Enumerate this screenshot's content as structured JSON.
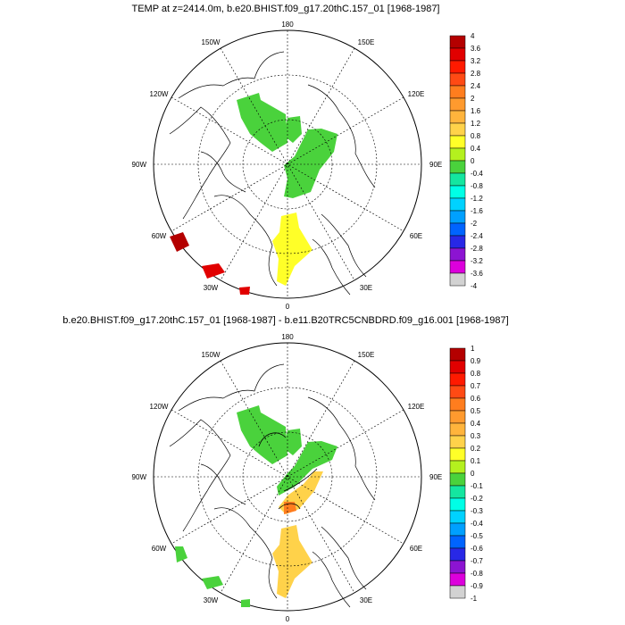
{
  "panels": [
    {
      "id": "top",
      "title": "TEMP at z=2414.0m, b.e20.BHIST.f09_g17.20thC.157_01 [1968-1987]",
      "colorbar_labels": [
        "4",
        "3.6",
        "3.2",
        "2.8",
        "2.4",
        "2",
        "1.6",
        "1.2",
        "0.8",
        "0.4",
        "0",
        "-0.4",
        "-0.8",
        "-1.2",
        "-1.6",
        "-2",
        "-2.4",
        "-2.8",
        "-3.2",
        "-3.6",
        "-4"
      ]
    },
    {
      "id": "bottom",
      "title": "b.e20.BHIST.f09_g17.20thC.157_01 [1968-1987] - b.e11.B20TRC5CNBDRD.f09_g16.001 [1968-1987]",
      "colorbar_labels": [
        "1",
        "0.9",
        "0.8",
        "0.7",
        "0.6",
        "0.5",
        "0.4",
        "0.3",
        "0.2",
        "0.1",
        "0",
        "-0.1",
        "-0.2",
        "-0.3",
        "-0.4",
        "-0.5",
        "-0.6",
        "-0.7",
        "-0.8",
        "-0.9",
        "-1"
      ]
    }
  ],
  "longitude_labels": {
    "top": "180",
    "bottom": "0",
    "left": "90W",
    "right": "90E",
    "upper_left_1": "150W",
    "upper_left_2": "120W",
    "lower_left_1": "60W",
    "lower_left_2": "30W",
    "upper_right_1": "150E",
    "upper_right_2": "120E",
    "lower_right_1": "60E",
    "lower_right_2": "30E"
  },
  "colorbar_colors": [
    "#b40000",
    "#e10000",
    "#ff1a00",
    "#ff4a14",
    "#ff7d1e",
    "#ff9a2e",
    "#ffb43c",
    "#ffd24a",
    "#ffff28",
    "#b4f01e",
    "#4ad23c",
    "#14e6a0",
    "#00ffe6",
    "#00d2ff",
    "#00a0ff",
    "#0064ff",
    "#2828e6",
    "#8c14d2",
    "#dc00dc",
    "#d2d2d2",
    "#787878"
  ]
}
